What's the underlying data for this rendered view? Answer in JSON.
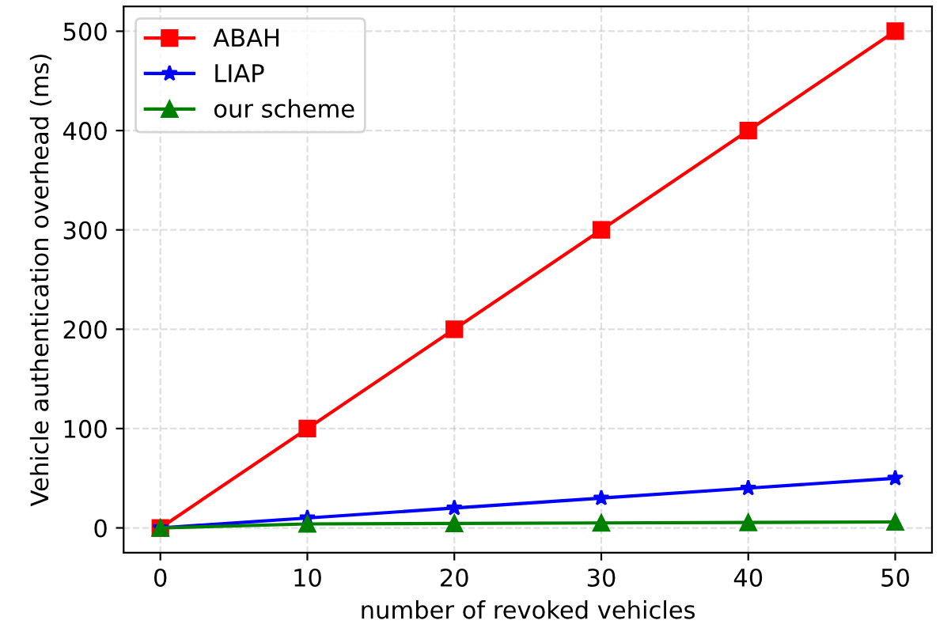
{
  "chart_data": {
    "type": "line",
    "xlabel": "number of revoked vehicles",
    "ylabel": "Vehicle authentication overhead (ms)",
    "x": [
      0,
      10,
      20,
      30,
      40,
      50
    ],
    "series": [
      {
        "name": "ABAH",
        "color": "#ff0000",
        "marker": "square",
        "values": [
          0,
          100,
          200,
          300,
          400,
          500
        ]
      },
      {
        "name": "LIAP",
        "color": "#0000ff",
        "marker": "star",
        "values": [
          0,
          10,
          20,
          30,
          40,
          50
        ]
      },
      {
        "name": "our scheme",
        "color": "#008000",
        "marker": "triangle",
        "values": [
          0,
          4,
          4.5,
          5,
          5.5,
          6
        ]
      }
    ],
    "xlim": [
      -2.5,
      52.5
    ],
    "ylim": [
      -25,
      525
    ],
    "xticks": [
      0,
      10,
      20,
      30,
      40,
      50
    ],
    "yticks": [
      0,
      100,
      200,
      300,
      400,
      500
    ],
    "grid": true,
    "legend": "top left",
    "line_style": "solid"
  }
}
